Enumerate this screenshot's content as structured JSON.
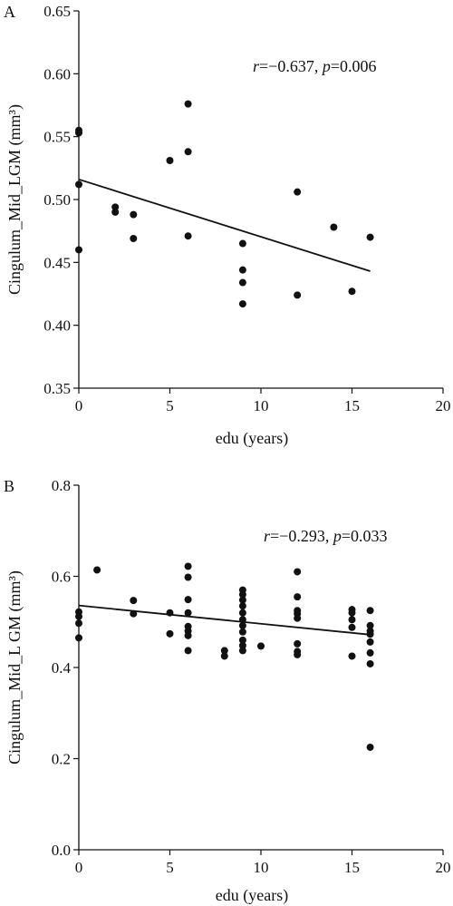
{
  "chart_data": [
    {
      "type": "scatter",
      "panel_label": "A",
      "xlabel": "edu (years)",
      "ylabel": "Cingulum_Mid_LGM (mm³)",
      "xlim": [
        0,
        20
      ],
      "ylim": [
        0.35,
        0.65
      ],
      "xticks": [
        0,
        5,
        10,
        15,
        20
      ],
      "yticks": [
        0.35,
        0.4,
        0.45,
        0.5,
        0.55,
        0.6,
        0.65
      ],
      "ytick_labels": [
        "0.35",
        "0.40",
        "0.45",
        "0.50",
        "0.55",
        "0.60",
        "0.65"
      ],
      "annotation": {
        "r_label": "r",
        "r_value": "=−0.637, ",
        "p_label": "p",
        "p_value": "=0.006"
      },
      "points": [
        [
          0,
          0.555
        ],
        [
          0,
          0.553
        ],
        [
          0,
          0.512
        ],
        [
          0,
          0.46
        ],
        [
          2,
          0.494
        ],
        [
          2,
          0.49
        ],
        [
          3,
          0.488
        ],
        [
          3,
          0.469
        ],
        [
          5,
          0.531
        ],
        [
          6,
          0.576
        ],
        [
          6,
          0.538
        ],
        [
          6,
          0.471
        ],
        [
          9,
          0.465
        ],
        [
          9,
          0.444
        ],
        [
          9,
          0.434
        ],
        [
          9,
          0.417
        ],
        [
          12,
          0.506
        ],
        [
          12,
          0.424
        ],
        [
          14,
          0.478
        ],
        [
          15,
          0.427
        ],
        [
          16,
          0.47
        ]
      ],
      "regression": [
        [
          0,
          0.516
        ],
        [
          16,
          0.443
        ]
      ]
    },
    {
      "type": "scatter",
      "panel_label": "B",
      "xlabel": "edu (years)",
      "ylabel": "Cingulum_Mid_L GM (mm³)",
      "xlim": [
        0,
        20
      ],
      "ylim": [
        0,
        0.8
      ],
      "xticks": [
        0,
        5,
        10,
        15,
        20
      ],
      "yticks": [
        0,
        0.2,
        0.4,
        0.6,
        0.8
      ],
      "ytick_labels": [
        "0.0",
        "0.2",
        "0.4",
        "0.6",
        "0.8"
      ],
      "annotation": {
        "r_label": "r",
        "r_value": "=−0.293, ",
        "p_label": "p",
        "p_value": "=0.033"
      },
      "points": [
        [
          0,
          0.522
        ],
        [
          0,
          0.512
        ],
        [
          0,
          0.497
        ],
        [
          0,
          0.465
        ],
        [
          1,
          0.614
        ],
        [
          3,
          0.547
        ],
        [
          3,
          0.518
        ],
        [
          5,
          0.52
        ],
        [
          5,
          0.474
        ],
        [
          6,
          0.622
        ],
        [
          6,
          0.598
        ],
        [
          6,
          0.549
        ],
        [
          6,
          0.52
        ],
        [
          6,
          0.49
        ],
        [
          6,
          0.48
        ],
        [
          6,
          0.47
        ],
        [
          6,
          0.437
        ],
        [
          8,
          0.437
        ],
        [
          8,
          0.425
        ],
        [
          9,
          0.57
        ],
        [
          9,
          0.56
        ],
        [
          9,
          0.548
        ],
        [
          9,
          0.535
        ],
        [
          9,
          0.52
        ],
        [
          9,
          0.505
        ],
        [
          9,
          0.492
        ],
        [
          9,
          0.478
        ],
        [
          9,
          0.46
        ],
        [
          9,
          0.448
        ],
        [
          9,
          0.437
        ],
        [
          10,
          0.447
        ],
        [
          12,
          0.61
        ],
        [
          12,
          0.555
        ],
        [
          12,
          0.525
        ],
        [
          12,
          0.518
        ],
        [
          12,
          0.508
        ],
        [
          12,
          0.452
        ],
        [
          12,
          0.435
        ],
        [
          12,
          0.428
        ],
        [
          15,
          0.527
        ],
        [
          15,
          0.52
        ],
        [
          15,
          0.505
        ],
        [
          15,
          0.488
        ],
        [
          15,
          0.425
        ],
        [
          16,
          0.525
        ],
        [
          16,
          0.492
        ],
        [
          16,
          0.48
        ],
        [
          16,
          0.473
        ],
        [
          16,
          0.456
        ],
        [
          16,
          0.432
        ],
        [
          16,
          0.408
        ],
        [
          16,
          0.225
        ]
      ],
      "regression": [
        [
          0,
          0.536
        ],
        [
          16,
          0.472
        ]
      ]
    }
  ]
}
